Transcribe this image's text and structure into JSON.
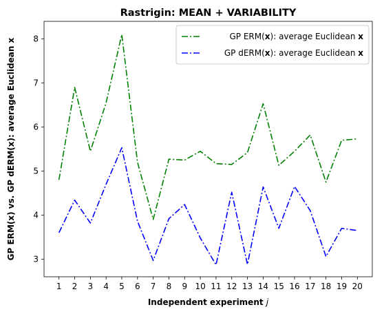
{
  "chart_data": {
    "type": "line",
    "title": "Rastrigin: MEAN + VARIABILITY",
    "xlabel": "Independent experiment",
    "xlabel_var": "j",
    "ylabel": "GP ERM(x) vs. GP dERM(x): average Euclidean x",
    "x": [
      1,
      2,
      3,
      4,
      5,
      6,
      7,
      8,
      9,
      10,
      11,
      12,
      13,
      14,
      15,
      16,
      17,
      18,
      19,
      20
    ],
    "xlim": [
      0.05,
      20.95
    ],
    "ylim": [
      2.6,
      8.4
    ],
    "yticks": [
      3,
      4,
      5,
      6,
      7,
      8
    ],
    "grid": false,
    "legend_position": "upper-right",
    "series": [
      {
        "name_prefix": "GP ERM(",
        "name_bold": "x",
        "name_mid": "): average Euclidean ",
        "name_suffix": "x",
        "color": "#008000",
        "dash": "dash-dot",
        "values": [
          4.8,
          6.9,
          5.45,
          6.55,
          8.1,
          5.2,
          3.9,
          5.27,
          5.25,
          5.45,
          5.17,
          5.15,
          5.42,
          6.53,
          5.13,
          5.45,
          5.82,
          4.75,
          5.7,
          5.73
        ]
      },
      {
        "name_prefix": "GP dERM(",
        "name_bold": "x",
        "name_mid": "): average Euclidean ",
        "name_suffix": "x",
        "color": "#0000ff",
        "dash": "dash-dot",
        "values": [
          3.6,
          4.34,
          3.82,
          4.7,
          5.53,
          3.86,
          2.97,
          3.92,
          4.24,
          3.48,
          2.87,
          4.52,
          2.88,
          4.64,
          3.7,
          4.65,
          4.1,
          3.06,
          3.7,
          3.65
        ]
      }
    ]
  }
}
